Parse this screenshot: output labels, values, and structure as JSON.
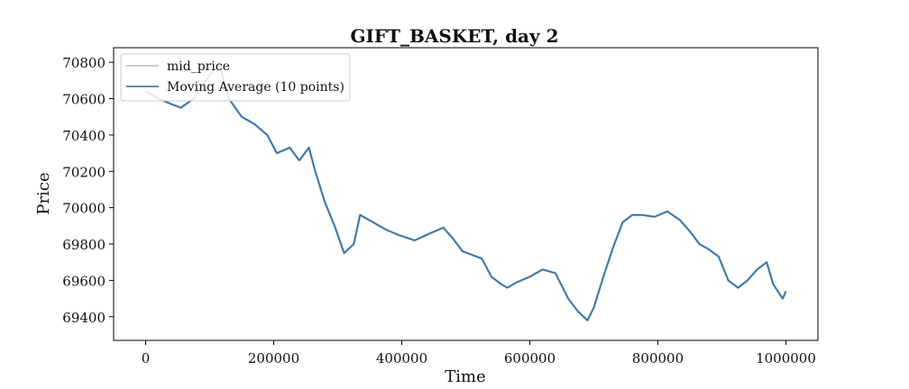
{
  "chart_data": {
    "type": "line",
    "title": "GIFT_BASKET, day 2",
    "xlabel": "Time",
    "ylabel": "Price",
    "xlim": [
      -50000,
      1050000
    ],
    "ylim": [
      69270,
      70880
    ],
    "x_ticks": [
      0,
      200000,
      400000,
      600000,
      800000,
      1000000
    ],
    "x_tick_labels": [
      "0",
      "200000",
      "400000",
      "600000",
      "800000",
      "1000000"
    ],
    "y_ticks": [
      69400,
      69600,
      69800,
      70000,
      70200,
      70400,
      70600,
      70800
    ],
    "y_tick_labels": [
      "69400",
      "69600",
      "69800",
      "70000",
      "70200",
      "70400",
      "70600",
      "70800"
    ],
    "grid": false,
    "legend_position": "top-left",
    "series": [
      {
        "name": "mid_price",
        "color": "#bbbbbb",
        "x": [
          0,
          20000,
          40000,
          55000,
          75000,
          100000,
          115000,
          130000,
          150000,
          170000,
          190000,
          205000,
          225000,
          240000,
          255000,
          265000,
          280000,
          295000,
          310000,
          325000,
          335000,
          355000,
          375000,
          395000,
          420000,
          445000,
          465000,
          480000,
          495000,
          510000,
          525000,
          540000,
          555000,
          565000,
          580000,
          600000,
          620000,
          640000,
          660000,
          675000,
          690000,
          700000,
          715000,
          730000,
          745000,
          760000,
          775000,
          795000,
          815000,
          835000,
          850000,
          865000,
          880000,
          895000,
          910000,
          925000,
          940000,
          955000,
          970000,
          980000,
          995000,
          1000000
        ],
        "y": [
          70640,
          70600,
          70570,
          70550,
          70600,
          70730,
          70790,
          70600,
          70500,
          70460,
          70400,
          70300,
          70330,
          70260,
          70330,
          70200,
          70030,
          69900,
          69750,
          69800,
          69960,
          69920,
          69880,
          69850,
          69820,
          69860,
          69890,
          69830,
          69760,
          69740,
          69720,
          69620,
          69580,
          69560,
          69590,
          69620,
          69660,
          69640,
          69500,
          69430,
          69380,
          69450,
          69620,
          69780,
          69920,
          69960,
          69960,
          69950,
          69980,
          69930,
          69870,
          69800,
          69770,
          69730,
          69600,
          69560,
          69600,
          69660,
          69700,
          69580,
          69500,
          69540
        ]
      },
      {
        "name": "Moving Average (10 points)",
        "color": "#1f6fb0",
        "x": [
          0,
          20000,
          40000,
          55000,
          75000,
          100000,
          115000,
          130000,
          150000,
          170000,
          190000,
          205000,
          225000,
          240000,
          255000,
          265000,
          280000,
          295000,
          310000,
          325000,
          335000,
          355000,
          375000,
          395000,
          420000,
          445000,
          465000,
          480000,
          495000,
          510000,
          525000,
          540000,
          555000,
          565000,
          580000,
          600000,
          620000,
          640000,
          660000,
          675000,
          690000,
          700000,
          715000,
          730000,
          745000,
          760000,
          775000,
          795000,
          815000,
          835000,
          850000,
          865000,
          880000,
          895000,
          910000,
          925000,
          940000,
          955000,
          970000,
          980000,
          995000,
          1000000
        ],
        "y": [
          70640,
          70600,
          70570,
          70550,
          70600,
          70730,
          70790,
          70600,
          70500,
          70460,
          70400,
          70300,
          70330,
          70260,
          70330,
          70200,
          70030,
          69900,
          69750,
          69800,
          69960,
          69920,
          69880,
          69850,
          69820,
          69860,
          69890,
          69830,
          69760,
          69740,
          69720,
          69620,
          69580,
          69560,
          69590,
          69620,
          69660,
          69640,
          69500,
          69430,
          69380,
          69450,
          69620,
          69780,
          69920,
          69960,
          69960,
          69950,
          69980,
          69930,
          69870,
          69800,
          69770,
          69730,
          69600,
          69560,
          69600,
          69660,
          69700,
          69580,
          69500,
          69540
        ]
      }
    ]
  }
}
